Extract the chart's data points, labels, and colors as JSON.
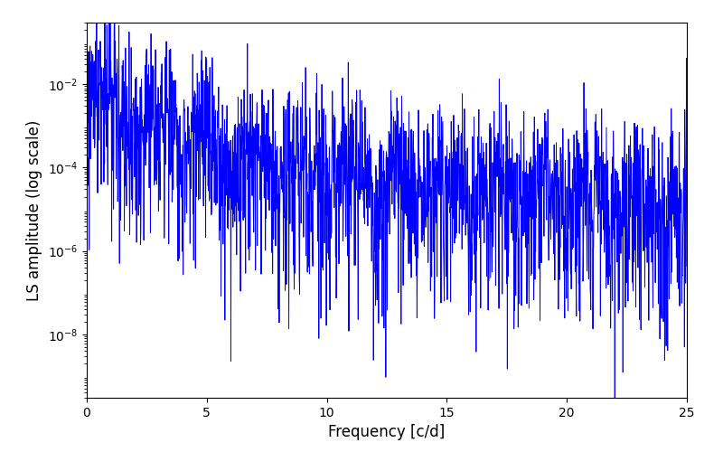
{
  "xlabel": "Frequency [c/d]",
  "ylabel": "LS amplitude (log scale)",
  "xlim": [
    0,
    25
  ],
  "ylim": [
    3e-10,
    0.3
  ],
  "line_color": "#0000ff",
  "linewidth": 0.7,
  "figsize": [
    8.0,
    5.0
  ],
  "dpi": 100,
  "seed": 12345,
  "n_points": 2000,
  "freq_max": 25.0,
  "base_amplitude": 0.003,
  "decay_power": 2.2,
  "noise_floor": 8e-07,
  "yticks": [
    1e-08,
    1e-06,
    0.0001,
    0.01
  ]
}
